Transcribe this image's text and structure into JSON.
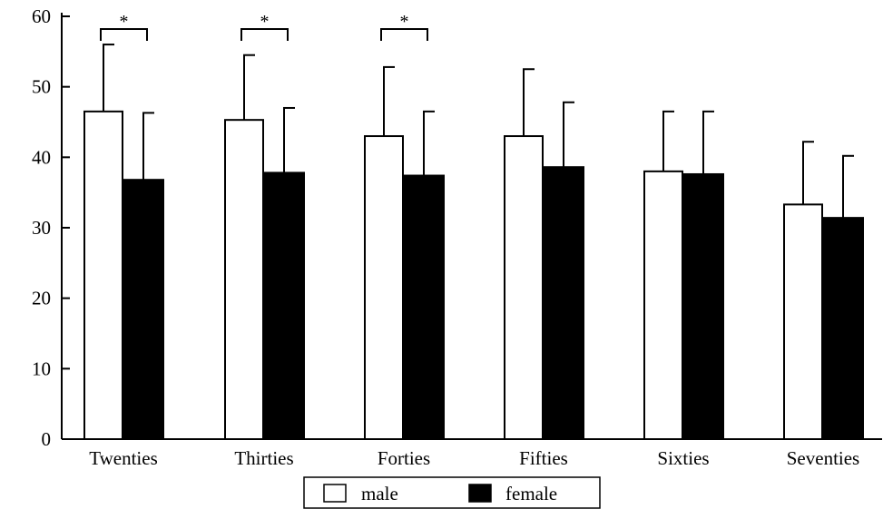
{
  "chart_data": {
    "type": "bar",
    "categories": [
      "Twenties",
      "Thirties",
      "Forties",
      "Fifties",
      "Sixties",
      "Seventies"
    ],
    "series": [
      {
        "name": "male",
        "values": [
          46.5,
          45.3,
          43.0,
          43.0,
          38.0,
          33.3
        ],
        "error_upper": [
          56.0,
          54.5,
          52.8,
          52.5,
          46.5,
          42.2
        ],
        "color": "#ffffff"
      },
      {
        "name": "female",
        "values": [
          36.8,
          37.8,
          37.4,
          38.6,
          37.6,
          31.4
        ],
        "error_upper": [
          46.3,
          47.0,
          46.5,
          47.8,
          46.5,
          40.2
        ],
        "color": "#000000"
      }
    ],
    "yticks": [
      "0",
      "10",
      "20",
      "30",
      "40",
      "50",
      "60"
    ],
    "ylim": [
      0,
      60
    ],
    "significance": [
      {
        "category": "Twenties",
        "label": "*"
      },
      {
        "category": "Thirties",
        "label": "*"
      },
      {
        "category": "Forties",
        "label": "*"
      }
    ],
    "legend": {
      "position": "bottom-center"
    },
    "grid": false
  }
}
